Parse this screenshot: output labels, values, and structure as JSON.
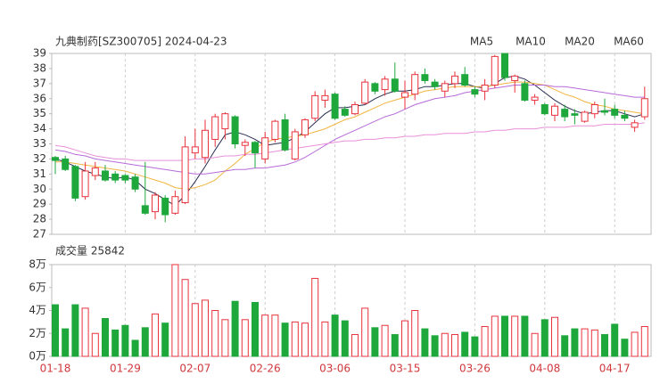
{
  "chart_data": [
    {
      "type": "candlestick",
      "title": "九典制药[SZ300705] 2024-04-23",
      "categories": [
        "01-18",
        null,
        null,
        null,
        null,
        null,
        null,
        "01-29",
        null,
        null,
        null,
        null,
        null,
        null,
        "02-07",
        null,
        null,
        null,
        null,
        null,
        null,
        "02-26",
        null,
        null,
        null,
        null,
        null,
        null,
        "03-06",
        null,
        null,
        null,
        null,
        null,
        null,
        "03-15",
        null,
        null,
        null,
        null,
        null,
        null,
        "03-26",
        null,
        null,
        null,
        null,
        null,
        null,
        "04-08",
        null,
        null,
        null,
        null,
        null,
        null,
        "04-17",
        null,
        null,
        null
      ],
      "open": [
        32.1,
        32.0,
        31.5,
        29.5,
        30.9,
        31.2,
        31.0,
        30.9,
        30.8,
        28.9,
        28.5,
        29.4,
        28.4,
        29.1,
        32.4,
        32.1,
        33.3,
        34.0,
        34.8,
        32.9,
        33.1,
        32.0,
        33.3,
        34.6,
        32.0,
        33.6,
        34.7,
        35.9,
        36.3,
        35.3,
        35.0,
        35.7,
        37.0,
        36.6,
        37.3,
        36.1,
        36.3,
        37.6,
        37.1,
        36.5,
        37.0,
        37.6,
        36.6,
        36.5,
        36.9,
        39.0,
        37.2,
        37.0,
        35.9,
        35.6,
        34.9,
        35.3,
        35.0,
        34.5,
        35.0,
        35.2,
        35.3,
        34.9,
        34.1,
        34.8
      ],
      "high": [
        32.2,
        32.2,
        31.6,
        31.8,
        31.8,
        31.6,
        31.2,
        31.0,
        31.0,
        31.8,
        29.8,
        29.6,
        29.9,
        33.5,
        34.0,
        34.6,
        35.0,
        35.1,
        34.9,
        33.3,
        33.2,
        33.8,
        34.6,
        35.0,
        34.0,
        34.7,
        36.5,
        36.6,
        36.4,
        35.5,
        35.8,
        37.3,
        37.1,
        37.5,
        38.4,
        37.2,
        37.8,
        38.0,
        37.3,
        37.2,
        37.8,
        38.1,
        36.8,
        37.3,
        38.9,
        39.0,
        37.6,
        37.2,
        36.3,
        35.7,
        35.7,
        35.6,
        35.3,
        35.2,
        35.8,
        36.0,
        35.6,
        35.2,
        34.6,
        36.8
      ],
      "low": [
        31.0,
        31.2,
        29.2,
        29.3,
        30.6,
        30.5,
        30.4,
        30.4,
        29.8,
        28.3,
        28.0,
        27.8,
        28.3,
        29.0,
        32.0,
        31.7,
        32.8,
        33.3,
        32.7,
        32.2,
        31.4,
        31.7,
        33.1,
        32.5,
        31.9,
        33.4,
        34.5,
        35.4,
        34.6,
        34.8,
        34.9,
        35.6,
        36.3,
        36.2,
        36.4,
        35.3,
        35.9,
        37.0,
        36.6,
        36.1,
        36.7,
        36.8,
        36.1,
        35.9,
        36.7,
        37.2,
        36.4,
        35.8,
        35.6,
        34.9,
        34.5,
        34.5,
        34.3,
        34.4,
        34.7,
        34.9,
        34.7,
        34.5,
        33.8,
        34.6
      ],
      "close": [
        31.9,
        31.3,
        29.4,
        31.2,
        31.4,
        30.6,
        30.6,
        30.6,
        30.0,
        28.4,
        29.6,
        28.3,
        29.5,
        32.8,
        32.8,
        33.9,
        34.8,
        35.0,
        33.0,
        33.1,
        32.4,
        33.4,
        34.5,
        32.6,
        33.8,
        34.6,
        36.2,
        36.2,
        34.7,
        34.9,
        35.6,
        37.1,
        36.5,
        37.3,
        36.5,
        36.4,
        37.6,
        37.2,
        36.8,
        37.0,
        37.5,
        36.9,
        36.3,
        36.9,
        38.8,
        37.4,
        37.5,
        35.9,
        36.1,
        35.0,
        35.5,
        34.8,
        34.9,
        35.1,
        35.6,
        35.1,
        34.9,
        34.7,
        34.4,
        36.0
      ],
      "up_color": "#e8323c",
      "down_color": "#1ea83c",
      "series": [
        {
          "name": "MA5",
          "color": "#2a2f52",
          "values": [
            32.0,
            31.8,
            31.5,
            31.2,
            31.0,
            30.8,
            30.7,
            30.8,
            30.6,
            30.0,
            29.7,
            29.3,
            28.9,
            29.6,
            30.5,
            31.5,
            32.6,
            33.6,
            33.8,
            33.6,
            33.3,
            32.9,
            33.0,
            33.1,
            33.4,
            33.8,
            34.4,
            35.0,
            35.4,
            35.4,
            35.5,
            35.6,
            36.0,
            36.3,
            36.5,
            36.5,
            36.6,
            36.8,
            36.8,
            36.9,
            37.0,
            37.0,
            36.8,
            36.7,
            37.0,
            37.4,
            37.5,
            37.3,
            36.9,
            36.4,
            35.9,
            35.5,
            35.2,
            35.0,
            35.1,
            35.2,
            35.2,
            35.0,
            34.8,
            35.0
          ]
        },
        {
          "name": "MA10",
          "color": "#f0b540",
          "values": [
            31.8,
            31.8,
            31.7,
            31.6,
            31.5,
            31.4,
            31.3,
            31.2,
            31.0,
            30.8,
            30.6,
            30.4,
            30.1,
            30.0,
            30.1,
            30.3,
            30.6,
            31.2,
            31.7,
            32.3,
            32.7,
            33.1,
            33.3,
            33.4,
            33.5,
            33.6,
            33.8,
            34.0,
            34.3,
            34.6,
            34.8,
            35.1,
            35.4,
            35.7,
            35.9,
            36.1,
            36.3,
            36.5,
            36.6,
            36.7,
            36.8,
            36.8,
            36.8,
            36.8,
            36.9,
            37.0,
            37.1,
            37.1,
            37.0,
            36.9,
            36.6,
            36.3,
            36.1,
            35.8,
            35.6,
            35.5,
            35.3,
            35.2,
            35.1,
            35.0
          ]
        },
        {
          "name": "MA20",
          "color": "#b76ad8",
          "values": [
            32.6,
            32.5,
            32.3,
            32.2,
            32.0,
            31.9,
            31.8,
            31.7,
            31.6,
            31.5,
            31.4,
            31.3,
            31.2,
            31.1,
            31.0,
            31.0,
            31.1,
            31.2,
            31.3,
            31.3,
            31.4,
            31.4,
            31.5,
            31.6,
            31.8,
            32.1,
            32.5,
            32.9,
            33.3,
            33.6,
            33.9,
            34.2,
            34.5,
            34.8,
            35.0,
            35.3,
            35.6,
            35.8,
            36.0,
            36.1,
            36.2,
            36.4,
            36.5,
            36.6,
            36.7,
            36.8,
            36.9,
            36.9,
            36.9,
            36.9,
            36.8,
            36.8,
            36.7,
            36.6,
            36.5,
            36.4,
            36.3,
            36.2,
            36.1,
            36.1
          ]
        },
        {
          "name": "MA60",
          "color": "#e890d8",
          "values": [
            32.9,
            32.8,
            32.6,
            32.4,
            32.2,
            32.1,
            32.0,
            32.0,
            31.9,
            31.9,
            31.9,
            31.9,
            31.9,
            31.9,
            32.0,
            32.0,
            32.1,
            32.2,
            32.2,
            32.3,
            32.3,
            32.4,
            32.5,
            32.6,
            32.7,
            32.8,
            32.9,
            33.0,
            33.1,
            33.2,
            33.2,
            33.3,
            33.3,
            33.4,
            33.4,
            33.5,
            33.5,
            33.6,
            33.6,
            33.7,
            33.7,
            33.7,
            33.8,
            33.8,
            33.9,
            33.9,
            34.0,
            34.0,
            34.0,
            34.1,
            34.1,
            34.1,
            34.2,
            34.2,
            34.2,
            34.3,
            34.3,
            34.3,
            34.3,
            34.4
          ]
        }
      ],
      "ylim": [
        27,
        39
      ],
      "yticks": [
        27,
        28,
        29,
        30,
        31,
        32,
        33,
        34,
        35,
        36,
        37,
        38,
        39
      ]
    },
    {
      "type": "bar",
      "title": "成交量 25842",
      "values": [
        4.5,
        2.4,
        4.5,
        4.2,
        2.0,
        3.3,
        2.3,
        2.7,
        1.4,
        2.5,
        3.7,
        2.9,
        8.0,
        6.7,
        4.6,
        4.9,
        4.0,
        3.2,
        4.8,
        3.2,
        4.7,
        3.6,
        3.6,
        2.9,
        3.0,
        2.9,
        6.8,
        3.0,
        3.6,
        3.1,
        1.9,
        4.2,
        2.5,
        2.7,
        1.9,
        3.1,
        4.0,
        2.4,
        1.8,
        2.0,
        1.9,
        2.1,
        1.7,
        2.6,
        3.5,
        3.5,
        3.5,
        3.5,
        2.0,
        3.2,
        3.4,
        1.8,
        2.4,
        2.4,
        2.3,
        1.9,
        2.8,
        1.5,
        2.1,
        2.6
      ],
      "ylim": [
        0,
        8
      ],
      "yticks": [
        {
          "value": 0,
          "label": "0万"
        },
        {
          "value": 2,
          "label": "2万"
        },
        {
          "value": 4,
          "label": "4万"
        },
        {
          "value": 6,
          "label": "6万"
        },
        {
          "value": 8,
          "label": "8万"
        }
      ]
    }
  ]
}
